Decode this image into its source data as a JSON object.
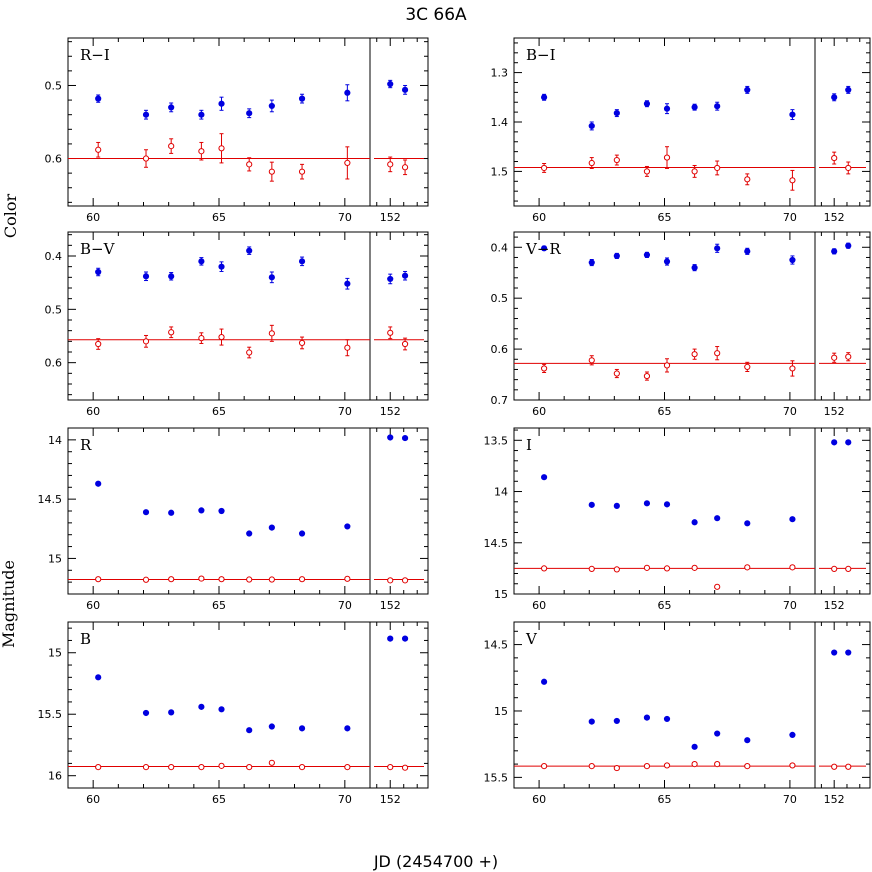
{
  "title": "3C 66A",
  "ylabel_top": "Color",
  "ylabel_bottom": "Magnitude",
  "xlabel": "JD (2454700 +)",
  "colors": {
    "blue": "#0000e0",
    "red": "#e00000",
    "axis": "#000000"
  },
  "chart_data": [
    {
      "type": "scatter",
      "label": "R−I",
      "inverted_y": true,
      "ylim": [
        0.665,
        0.435
      ],
      "yticks": [
        0.5,
        0.6
      ],
      "ytick_labels": [
        "0.5",
        "0.6"
      ],
      "xlim_main": [
        59,
        71
      ],
      "xticks_main": [
        60,
        65,
        70
      ],
      "xtick_labels_main": [
        "60",
        "65",
        "70"
      ],
      "xlim_extra": [
        150.5,
        154.8
      ],
      "xticks_extra": [
        152
      ],
      "xtick_labels_extra": [
        "152"
      ],
      "series": [
        {
          "color": "blue",
          "marker": "filled",
          "x": [
            60.2,
            62.1,
            63.1,
            64.3,
            65.1,
            66.2,
            67.1,
            68.3,
            70.1,
            152.0,
            153.1
          ],
          "y": [
            0.518,
            0.54,
            0.53,
            0.54,
            0.525,
            0.538,
            0.528,
            0.518,
            0.51,
            0.498,
            0.506
          ],
          "err": [
            0.005,
            0.006,
            0.006,
            0.006,
            0.009,
            0.006,
            0.008,
            0.006,
            0.011,
            0.005,
            0.006
          ]
        },
        {
          "color": "red",
          "marker": "open",
          "x": [
            60.2,
            62.1,
            63.1,
            64.3,
            65.1,
            66.2,
            67.1,
            68.3,
            70.1,
            152.0,
            153.1
          ],
          "y": [
            0.588,
            0.6,
            0.583,
            0.59,
            0.586,
            0.608,
            0.618,
            0.618,
            0.606,
            0.608,
            0.612
          ],
          "err": [
            0.01,
            0.012,
            0.01,
            0.012,
            0.02,
            0.009,
            0.013,
            0.01,
            0.022,
            0.01,
            0.01
          ]
        }
      ],
      "hlines": [
        {
          "y": 0.6,
          "color": "red"
        }
      ]
    },
    {
      "type": "scatter",
      "label": "B−I",
      "inverted_y": true,
      "ylim": [
        1.57,
        1.23
      ],
      "yticks": [
        1.3,
        1.4,
        1.5
      ],
      "ytick_labels": [
        "1.3",
        "1.4",
        "1.5"
      ],
      "xlim_main": [
        59,
        71
      ],
      "xticks_main": [
        60,
        65,
        70
      ],
      "xtick_labels_main": [
        "60",
        "65",
        "70"
      ],
      "xlim_extra": [
        150.5,
        154.8
      ],
      "xticks_extra": [
        152
      ],
      "xtick_labels_extra": [
        "152"
      ],
      "series": [
        {
          "color": "blue",
          "marker": "filled",
          "x": [
            60.2,
            62.1,
            63.1,
            64.3,
            65.1,
            66.2,
            67.1,
            68.3,
            70.1,
            152.0,
            153.1
          ],
          "y": [
            1.35,
            1.408,
            1.382,
            1.363,
            1.373,
            1.37,
            1.368,
            1.335,
            1.385,
            1.35,
            1.335
          ],
          "err": [
            0.006,
            0.008,
            0.007,
            0.006,
            0.01,
            0.006,
            0.008,
            0.007,
            0.01,
            0.007,
            0.007
          ]
        },
        {
          "color": "red",
          "marker": "open",
          "x": [
            60.2,
            62.1,
            63.1,
            64.3,
            65.1,
            66.2,
            67.1,
            68.3,
            70.1,
            152.0,
            153.1
          ],
          "y": [
            1.493,
            1.483,
            1.477,
            1.5,
            1.472,
            1.5,
            1.493,
            1.516,
            1.518,
            1.473,
            1.493
          ],
          "err": [
            0.009,
            0.011,
            0.01,
            0.01,
            0.022,
            0.012,
            0.014,
            0.011,
            0.02,
            0.012,
            0.012
          ]
        }
      ],
      "hlines": [
        {
          "y": 1.492,
          "color": "red"
        }
      ]
    },
    {
      "type": "scatter",
      "label": "B−V",
      "inverted_y": true,
      "ylim": [
        0.67,
        0.355
      ],
      "yticks": [
        0.4,
        0.5,
        0.6
      ],
      "ytick_labels": [
        "0.4",
        "0.5",
        "0.6"
      ],
      "xlim_main": [
        59,
        71
      ],
      "xticks_main": [
        60,
        65,
        70
      ],
      "xtick_labels_main": [
        "60",
        "65",
        "70"
      ],
      "xlim_extra": [
        150.5,
        154.8
      ],
      "xticks_extra": [
        152
      ],
      "xtick_labels_extra": [
        "152"
      ],
      "series": [
        {
          "color": "blue",
          "marker": "filled",
          "x": [
            60.2,
            62.1,
            63.1,
            64.3,
            65.1,
            66.2,
            67.1,
            68.3,
            70.1,
            152.0,
            153.1
          ],
          "y": [
            0.43,
            0.438,
            0.438,
            0.41,
            0.42,
            0.39,
            0.44,
            0.41,
            0.452,
            0.443,
            0.437
          ],
          "err": [
            0.007,
            0.008,
            0.007,
            0.007,
            0.009,
            0.007,
            0.01,
            0.008,
            0.01,
            0.009,
            0.008
          ]
        },
        {
          "color": "red",
          "marker": "open",
          "x": [
            60.2,
            62.1,
            63.1,
            64.3,
            65.1,
            66.2,
            67.1,
            68.3,
            70.1,
            152.0,
            153.1
          ],
          "y": [
            0.565,
            0.56,
            0.543,
            0.554,
            0.552,
            0.581,
            0.545,
            0.563,
            0.572,
            0.544,
            0.565
          ],
          "err": [
            0.01,
            0.011,
            0.01,
            0.01,
            0.015,
            0.01,
            0.015,
            0.011,
            0.015,
            0.011,
            0.011
          ]
        }
      ],
      "hlines": [
        {
          "y": 0.557,
          "color": "red"
        }
      ]
    },
    {
      "type": "scatter",
      "label": "V−R",
      "inverted_y": true,
      "ylim": [
        0.7,
        0.37
      ],
      "yticks": [
        0.4,
        0.5,
        0.6,
        0.7
      ],
      "ytick_labels": [
        "0.4",
        "0.5",
        "0.6",
        "0.7"
      ],
      "xlim_main": [
        59,
        71
      ],
      "xticks_main": [
        60,
        65,
        70
      ],
      "xtick_labels_main": [
        "60",
        "65",
        "70"
      ],
      "xlim_extra": [
        150.5,
        154.8
      ],
      "xticks_extra": [
        152
      ],
      "xtick_labels_extra": [
        "152"
      ],
      "series": [
        {
          "color": "blue",
          "marker": "filled",
          "x": [
            60.2,
            62.1,
            63.1,
            64.3,
            65.1,
            66.2,
            67.1,
            68.3,
            70.1,
            152.0,
            153.1
          ],
          "y": [
            0.402,
            0.43,
            0.417,
            0.415,
            0.428,
            0.44,
            0.402,
            0.408,
            0.425,
            0.408,
            0.397
          ],
          "err": [
            0.004,
            0.006,
            0.005,
            0.005,
            0.007,
            0.006,
            0.008,
            0.006,
            0.008,
            0.005,
            0.005
          ]
        },
        {
          "color": "red",
          "marker": "open",
          "x": [
            60.2,
            62.1,
            63.1,
            64.3,
            65.1,
            66.2,
            67.1,
            68.3,
            70.1,
            152.0,
            153.1
          ],
          "y": [
            0.638,
            0.622,
            0.648,
            0.653,
            0.632,
            0.61,
            0.608,
            0.635,
            0.638,
            0.617,
            0.615
          ],
          "err": [
            0.008,
            0.009,
            0.008,
            0.008,
            0.013,
            0.01,
            0.013,
            0.009,
            0.015,
            0.009,
            0.008
          ]
        }
      ],
      "hlines": [
        {
          "y": 0.628,
          "color": "red"
        }
      ]
    },
    {
      "type": "scatter",
      "label": "R",
      "inverted_y": true,
      "ylim": [
        15.3,
        13.9
      ],
      "yticks": [
        14,
        14.5,
        15
      ],
      "ytick_labels": [
        "14",
        "14.5",
        "15"
      ],
      "xlim_main": [
        59,
        71
      ],
      "xticks_main": [
        60,
        65,
        70
      ],
      "xtick_labels_main": [
        "60",
        "65",
        "70"
      ],
      "xlim_extra": [
        150.5,
        154.8
      ],
      "xticks_extra": [
        152
      ],
      "xtick_labels_extra": [
        "152"
      ],
      "series": [
        {
          "color": "blue",
          "marker": "filled",
          "x": [
            60.2,
            62.1,
            63.1,
            64.3,
            65.1,
            66.2,
            67.1,
            68.3,
            70.1,
            152.0,
            153.1
          ],
          "y": [
            14.37,
            14.61,
            14.615,
            14.595,
            14.6,
            14.79,
            14.74,
            14.79,
            14.73,
            13.98,
            13.985
          ]
        },
        {
          "color": "red",
          "marker": "open",
          "x": [
            60.2,
            62.1,
            63.1,
            64.3,
            65.1,
            66.2,
            67.1,
            68.3,
            70.1,
            152.0,
            153.1
          ],
          "y": [
            15.175,
            15.18,
            15.175,
            15.17,
            15.175,
            15.178,
            15.178,
            15.175,
            15.172,
            15.185,
            15.185
          ]
        }
      ],
      "hlines": [
        {
          "y": 15.178,
          "color": "red"
        }
      ]
    },
    {
      "type": "scatter",
      "label": "I",
      "inverted_y": true,
      "ylim": [
        15.0,
        13.38
      ],
      "yticks": [
        13.5,
        14,
        14.5,
        15
      ],
      "ytick_labels": [
        "13.5",
        "14",
        "14.5",
        "15"
      ],
      "xlim_main": [
        59,
        71
      ],
      "xticks_main": [
        60,
        65,
        70
      ],
      "xtick_labels_main": [
        "60",
        "65",
        "70"
      ],
      "xlim_extra": [
        150.5,
        154.8
      ],
      "xticks_extra": [
        152
      ],
      "xtick_labels_extra": [
        "152"
      ],
      "series": [
        {
          "color": "blue",
          "marker": "filled",
          "x": [
            60.2,
            62.1,
            63.1,
            64.3,
            65.1,
            66.2,
            67.1,
            68.3,
            70.1,
            152.0,
            153.1
          ],
          "y": [
            13.86,
            14.13,
            14.14,
            14.115,
            14.125,
            14.3,
            14.26,
            14.31,
            14.27,
            13.52,
            13.52
          ]
        },
        {
          "color": "red",
          "marker": "open",
          "x": [
            60.2,
            62.1,
            63.1,
            64.3,
            65.1,
            66.2,
            67.1,
            68.3,
            70.1,
            152.0,
            153.1
          ],
          "y": [
            14.75,
            14.755,
            14.76,
            14.745,
            14.75,
            14.745,
            14.93,
            14.74,
            14.74,
            14.755,
            14.755
          ]
        }
      ],
      "hlines": [
        {
          "y": 14.75,
          "color": "red"
        }
      ]
    },
    {
      "type": "scatter",
      "label": "B",
      "inverted_y": true,
      "ylim": [
        16.1,
        14.75
      ],
      "yticks": [
        15,
        15.5,
        16
      ],
      "ytick_labels": [
        "15",
        "15.5",
        "16"
      ],
      "xlim_main": [
        59,
        71
      ],
      "xticks_main": [
        60,
        65,
        70
      ],
      "xtick_labels_main": [
        "60",
        "65",
        "70"
      ],
      "xlim_extra": [
        150.5,
        154.8
      ],
      "xticks_extra": [
        152
      ],
      "xtick_labels_extra": [
        "152"
      ],
      "series": [
        {
          "color": "blue",
          "marker": "filled",
          "x": [
            60.2,
            62.1,
            63.1,
            64.3,
            65.1,
            66.2,
            67.1,
            68.3,
            70.1,
            152.0,
            153.1
          ],
          "y": [
            15.2,
            15.49,
            15.485,
            15.44,
            15.46,
            15.63,
            15.6,
            15.615,
            15.615,
            14.885,
            14.885
          ]
        },
        {
          "color": "red",
          "marker": "open",
          "x": [
            60.2,
            62.1,
            63.1,
            64.3,
            65.1,
            66.2,
            67.1,
            68.3,
            70.1,
            152.0,
            153.1
          ],
          "y": [
            15.93,
            15.93,
            15.93,
            15.93,
            15.92,
            15.93,
            15.895,
            15.93,
            15.93,
            15.93,
            15.935
          ]
        }
      ],
      "hlines": [
        {
          "y": 15.925,
          "color": "red"
        }
      ]
    },
    {
      "type": "scatter",
      "label": "V",
      "inverted_y": true,
      "ylim": [
        15.58,
        14.33
      ],
      "yticks": [
        14.5,
        15,
        15.5
      ],
      "ytick_labels": [
        "14.5",
        "15",
        "15.5"
      ],
      "xlim_main": [
        59,
        71
      ],
      "xticks_main": [
        60,
        65,
        70
      ],
      "xtick_labels_main": [
        "60",
        "65",
        "70"
      ],
      "xlim_extra": [
        150.5,
        154.8
      ],
      "xticks_extra": [
        152
      ],
      "xtick_labels_extra": [
        "152"
      ],
      "series": [
        {
          "color": "blue",
          "marker": "filled",
          "x": [
            60.2,
            62.1,
            63.1,
            64.3,
            65.1,
            66.2,
            67.1,
            68.3,
            70.1,
            152.0,
            153.1
          ],
          "y": [
            14.78,
            15.08,
            15.075,
            15.05,
            15.06,
            15.27,
            15.17,
            15.22,
            15.18,
            14.56,
            14.56
          ]
        },
        {
          "color": "red",
          "marker": "open",
          "x": [
            60.2,
            62.1,
            63.1,
            64.3,
            65.1,
            66.2,
            67.1,
            68.3,
            70.1,
            152.0,
            153.1
          ],
          "y": [
            15.415,
            15.415,
            15.43,
            15.415,
            15.41,
            15.4,
            15.4,
            15.415,
            15.41,
            15.42,
            15.42
          ]
        }
      ],
      "hlines": [
        {
          "y": 15.415,
          "color": "red"
        }
      ]
    }
  ]
}
